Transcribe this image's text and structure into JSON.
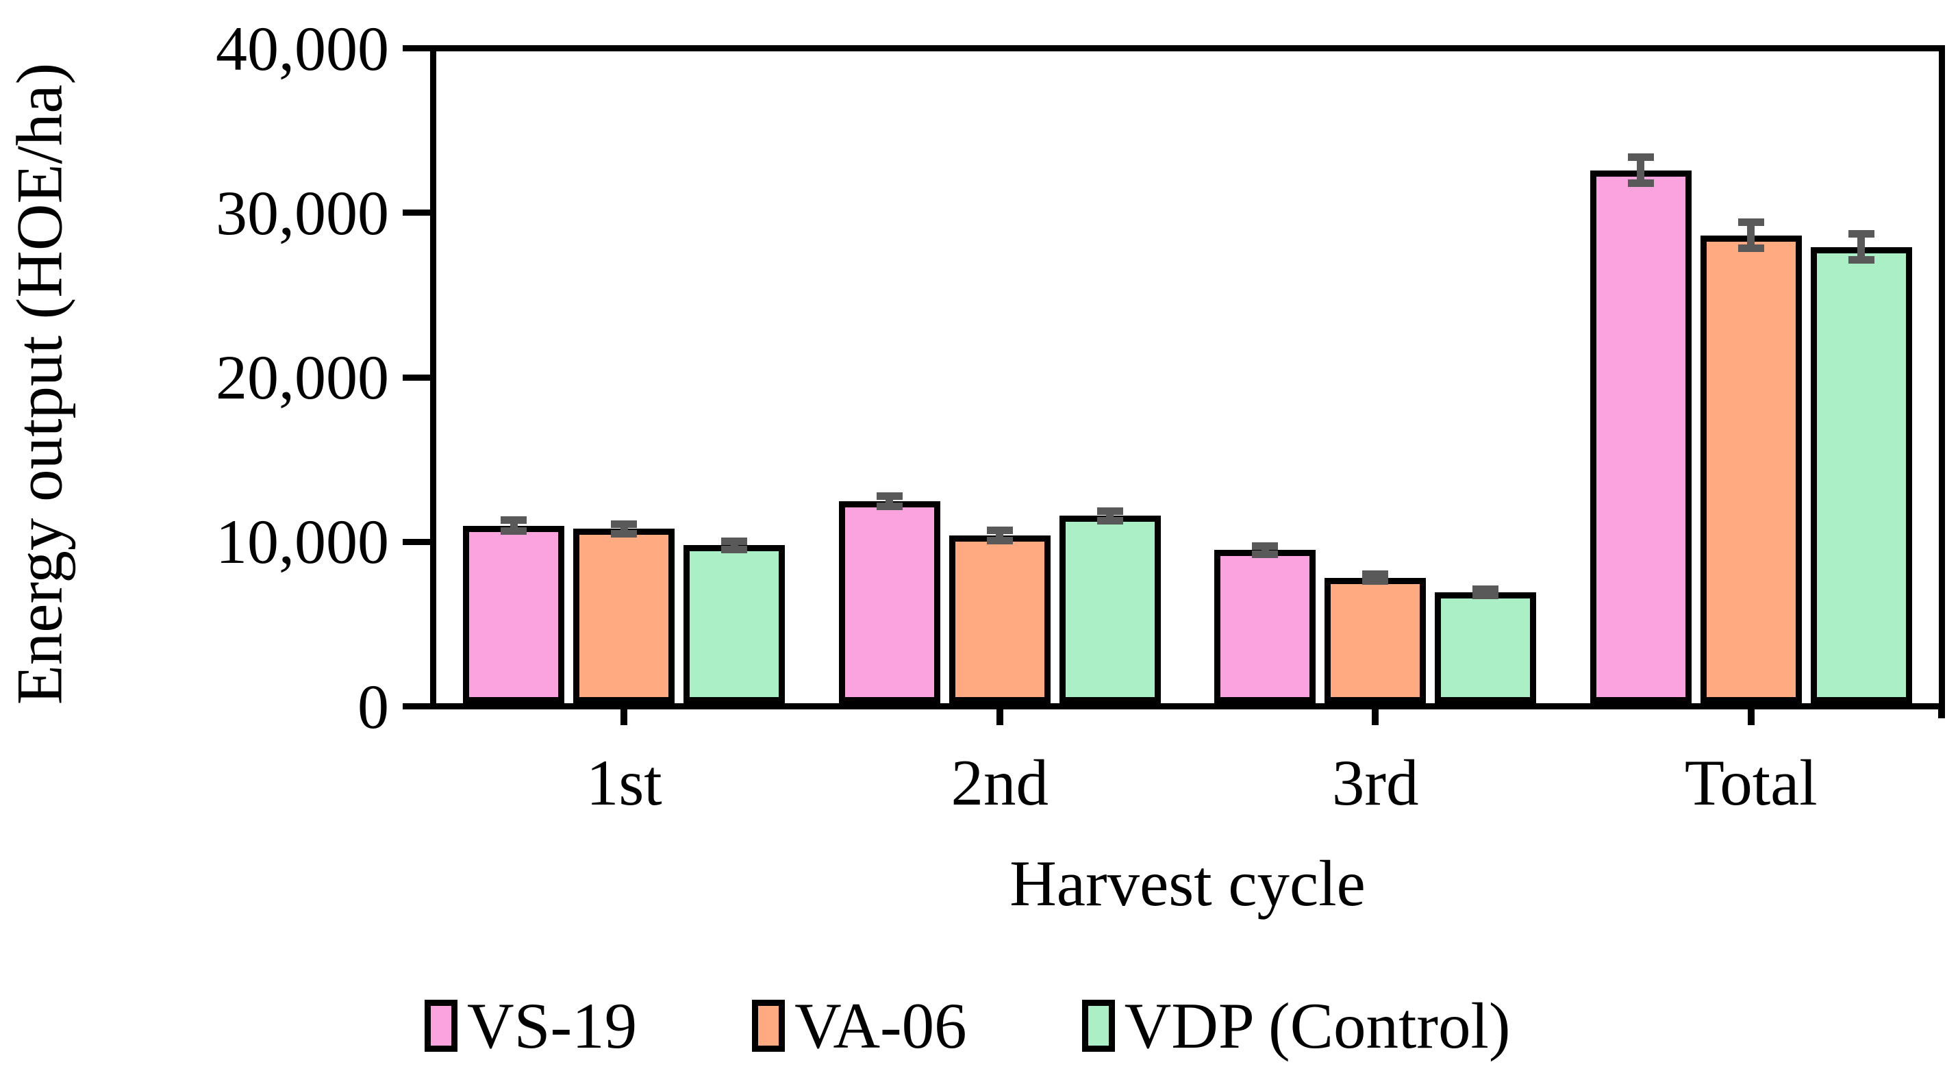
{
  "chart_data": {
    "type": "bar",
    "title": "",
    "xlabel": "Harvest cycle",
    "ylabel": "Energy output (HOE/ha)",
    "categories": [
      "1st",
      "2nd",
      "3rd",
      "Total"
    ],
    "series": [
      {
        "name": "VS-19",
        "color": "#FAA3DE",
        "values": [
          10900,
          12400,
          9400,
          32700
        ],
        "errors": [
          350,
          300,
          250,
          800
        ]
      },
      {
        "name": "VA-06",
        "color": "#FFAA80",
        "values": [
          10700,
          10300,
          7700,
          28700
        ],
        "errors": [
          300,
          300,
          200,
          800
        ]
      },
      {
        "name": "VDP (Control)",
        "color": "#ABEFC7",
        "values": [
          9700,
          11500,
          6800,
          28000
        ],
        "errors": [
          250,
          300,
          200,
          800
        ]
      }
    ],
    "ylim": [
      0,
      40000
    ],
    "ytick_step": 10000,
    "ytick_labels": [
      "0",
      "10,000",
      "20,000",
      "30,000",
      "40,000"
    ],
    "grid": false,
    "legend_position": "bottom",
    "bar_border_color": "#000000",
    "error_bar_color": "#595959",
    "axis_color": "#000000"
  }
}
